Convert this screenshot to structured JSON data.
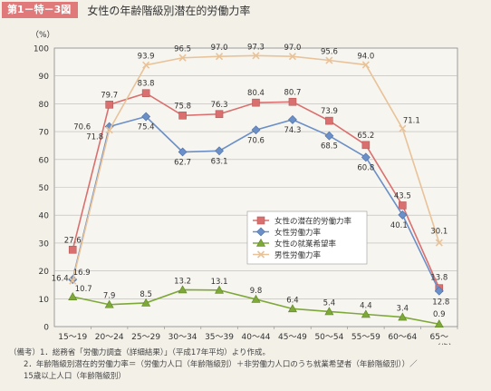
{
  "header": {
    "badge": "第1－特－3図",
    "title": "女性の年齢階級別潜在的労働力率"
  },
  "chart_data": {
    "type": "line",
    "ylabel": "（%）",
    "xunit": "（歳）",
    "ylim": [
      0,
      100
    ],
    "yticks": [
      0,
      10,
      20,
      30,
      40,
      50,
      60,
      70,
      80,
      90,
      100
    ],
    "grid": true,
    "legend_position": "center-right",
    "categories": [
      "15～19",
      "20～24",
      "25～29",
      "30～34",
      "35～39",
      "40～44",
      "45～49",
      "50～54",
      "55～59",
      "60～64",
      "65～"
    ],
    "series": [
      {
        "name": "女性の潜在的労働力率",
        "color": "#d9706f",
        "marker": "square",
        "values": [
          27.6,
          79.7,
          83.8,
          75.8,
          76.3,
          80.4,
          80.7,
          73.9,
          65.2,
          43.5,
          13.8
        ],
        "labels": [
          "27.6",
          "79.7",
          "83.8",
          "75.8",
          "76.3",
          "80.4",
          "80.7",
          "73.9",
          "65.2",
          "43.5",
          "13.8"
        ]
      },
      {
        "name": "女性労働力率",
        "color": "#6b8fc7",
        "marker": "diamond",
        "values": [
          16.9,
          71.8,
          75.4,
          62.7,
          63.1,
          70.6,
          74.3,
          68.5,
          60.8,
          40.1,
          12.8
        ],
        "labels": [
          "16.9",
          "71.8",
          "75.4",
          "62.7",
          "63.1",
          "70.6",
          "74.3",
          "68.5",
          "60.8",
          "40.1",
          "12.8"
        ]
      },
      {
        "name": "女性の就業希望率",
        "color": "#7ea83a",
        "marker": "triangle",
        "values": [
          10.7,
          7.9,
          8.5,
          13.2,
          13.1,
          9.8,
          6.4,
          5.4,
          4.4,
          3.4,
          0.9
        ],
        "labels": [
          "10.7",
          "7.9",
          "8.5",
          "13.2",
          "13.1",
          "9.8",
          "6.4",
          "5.4",
          "4.4",
          "3.4",
          "0.9"
        ]
      },
      {
        "name": "男性労働力率",
        "color": "#e8c39a",
        "marker": "x",
        "values": [
          16.4,
          70.6,
          93.9,
          96.5,
          97.0,
          97.3,
          97.0,
          95.6,
          94.0,
          71.1,
          30.1
        ],
        "labels": [
          "16.4",
          "70.6",
          "93.9",
          "96.5",
          "97.0",
          "97.3",
          "97.0",
          "95.6",
          "94.0",
          "71.1",
          "30.1"
        ]
      }
    ]
  },
  "notes": [
    "（備考）1．総務省「労働力調査（詳細結果）」（平成17年平均）より作成。",
    "2．年齢階級別潜在的労働力率＝（労働力人口（年齢階級別）＋非労働力人口のうち就業希望者（年齢階級別））／",
    "15歳以上人口（年齢階級別）"
  ]
}
